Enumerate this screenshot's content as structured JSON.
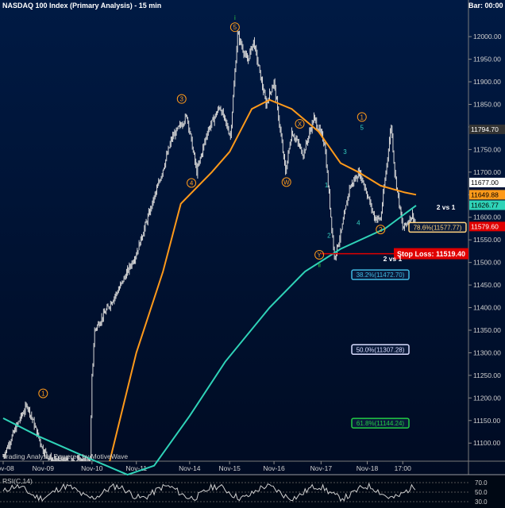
{
  "header": {
    "title": "NASDAQ 100 Index (Primary Analysis) - 15 min",
    "bar_label": "Bar: 00:00"
  },
  "footer": {
    "credit": "Trading Analysis Powered by MotiveWave"
  },
  "indicator": {
    "name": "RSI(C,14)",
    "ticks": [
      "70.0",
      "50.0",
      "30.0"
    ],
    "levels": [
      70,
      50,
      30
    ]
  },
  "colors": {
    "background": "#001a44",
    "price_bars": "#d8d8d8",
    "orange_ma": "#ff9a1a",
    "teal_ma": "#2fd3b8",
    "wave_labels": "#ff9a1a",
    "sub_wave_labels": "#35d0c0",
    "stop_loss": "#e00000",
    "fib_78_6": "#ffd27f",
    "fib_38_2": "#3fb8e0",
    "fib_50_0": "#d8dcff",
    "fib_61_8": "#22cc44"
  },
  "chart_data": {
    "type": "bar",
    "ylim": [
      11060,
      12060
    ],
    "y_ticks": [
      11100,
      11150,
      11200,
      11250,
      11300,
      11350,
      11400,
      11450,
      11500,
      11550,
      11600,
      11650,
      11700,
      11750,
      11800,
      11850,
      11900,
      11950,
      12000
    ],
    "y_tick_labels": [
      "11100.00",
      "11150.00",
      "11200.00",
      "11250.00",
      "11300.00",
      "11350.00",
      "11400.00",
      "11450.00",
      "11500.00",
      "11550.00",
      "11600.00",
      "11650.00",
      "11700.00",
      "11750.00",
      "11800.00",
      "11850.00",
      "11900.00",
      "11950.00",
      "12000.00"
    ],
    "x_tick_labels": [
      "Nov-08",
      "Nov-09",
      "Nov-10",
      "Nov-11",
      "Nov-14",
      "Nov-15",
      "Nov-16",
      "Nov-17",
      "Nov-18",
      "17:00"
    ],
    "x_tick_index": [
      0,
      45,
      100,
      150,
      210,
      255,
      305,
      358,
      410,
      450
    ],
    "bar_count": 465,
    "price_path": [
      [
        0,
        11070
      ],
      [
        18,
        11150
      ],
      [
        27,
        11185
      ],
      [
        45,
        11085
      ],
      [
        55,
        11060
      ],
      [
        98,
        11060
      ],
      [
        100,
        11245
      ],
      [
        103,
        11350
      ],
      [
        118,
        11400
      ],
      [
        130,
        11440
      ],
      [
        150,
        11520
      ],
      [
        163,
        11600
      ],
      [
        176,
        11680
      ],
      [
        190,
        11775
      ],
      [
        207,
        11825
      ],
      [
        218,
        11700
      ],
      [
        230,
        11790
      ],
      [
        244,
        11845
      ],
      [
        256,
        11780
      ],
      [
        264,
        12005
      ],
      [
        275,
        11945
      ],
      [
        282,
        11990
      ],
      [
        296,
        11850
      ],
      [
        305,
        11900
      ],
      [
        318,
        11700
      ],
      [
        325,
        11790
      ],
      [
        338,
        11740
      ],
      [
        350,
        11820
      ],
      [
        362,
        11765
      ],
      [
        373,
        11510
      ],
      [
        381,
        11570
      ],
      [
        390,
        11665
      ],
      [
        401,
        11700
      ],
      [
        407,
        11670
      ],
      [
        418,
        11600
      ],
      [
        425,
        11595
      ],
      [
        437,
        11805
      ],
      [
        441,
        11700
      ],
      [
        450,
        11575
      ],
      [
        461,
        11605
      ],
      [
        465,
        11577
      ]
    ],
    "last_close": 11577.0,
    "moving_averages": [
      {
        "color": "orange",
        "points": [
          [
            120,
            11060
          ],
          [
            150,
            11300
          ],
          [
            180,
            11480
          ],
          [
            200,
            11630
          ],
          [
            235,
            11700
          ],
          [
            255,
            11745
          ],
          [
            280,
            11840
          ],
          [
            300,
            11860
          ],
          [
            325,
            11840
          ],
          [
            355,
            11790
          ],
          [
            380,
            11720
          ],
          [
            400,
            11700
          ],
          [
            425,
            11670
          ],
          [
            452,
            11655
          ],
          [
            465,
            11650
          ]
        ]
      },
      {
        "color": "teal",
        "points": [
          [
            0,
            11155
          ],
          [
            40,
            11115
          ],
          [
            90,
            11072
          ],
          [
            140,
            11030
          ],
          [
            170,
            11050
          ],
          [
            210,
            11160
          ],
          [
            250,
            11280
          ],
          [
            300,
            11400
          ],
          [
            340,
            11480
          ],
          [
            380,
            11530
          ],
          [
            430,
            11575
          ],
          [
            465,
            11626
          ]
        ]
      }
    ],
    "wave_labels": [
      {
        "text": "1",
        "x": 45,
        "y": 11210,
        "circled": true,
        "color": "orange"
      },
      {
        "text": "3",
        "x": 201,
        "y": 11862,
        "circled": true,
        "color": "orange"
      },
      {
        "text": "4",
        "x": 212,
        "y": 11676,
        "circled": true,
        "color": "orange"
      },
      {
        "text": "5",
        "x": 261,
        "y": 12021,
        "circled": true,
        "color": "orange"
      },
      {
        "text": "i",
        "x": 261,
        "y": 12042,
        "circled": false,
        "color": "green"
      },
      {
        "text": "W",
        "x": 319,
        "y": 11678,
        "circled": true,
        "color": "orange"
      },
      {
        "text": "X",
        "x": 334,
        "y": 11807,
        "circled": true,
        "color": "orange"
      },
      {
        "text": "Y",
        "x": 356,
        "y": 11517,
        "circled": true,
        "color": "orange"
      },
      {
        "text": "ii",
        "x": 356,
        "y": 11495,
        "circled": false,
        "color": "green"
      },
      {
        "text": "1",
        "x": 404,
        "y": 11822,
        "circled": true,
        "color": "orange"
      },
      {
        "text": "1",
        "x": 364,
        "y": 11672,
        "circled": false,
        "color": "teal"
      },
      {
        "text": "2",
        "x": 367,
        "y": 11560,
        "circled": false,
        "color": "teal"
      },
      {
        "text": "3",
        "x": 385,
        "y": 11745,
        "circled": false,
        "color": "teal"
      },
      {
        "text": "4",
        "x": 400,
        "y": 11588,
        "circled": false,
        "color": "teal"
      },
      {
        "text": "5",
        "x": 404,
        "y": 11799,
        "circled": false,
        "color": "teal"
      },
      {
        "text": "2",
        "x": 425,
        "y": 11573,
        "circled": true,
        "color": "orange"
      }
    ],
    "annotations": [
      {
        "text": "2 vs 1",
        "x": 488,
        "y": 11617
      },
      {
        "text": "2 vs 1",
        "x": 428,
        "y": 11503
      }
    ],
    "price_boxes": [
      {
        "text": "11794.70",
        "value": 11794.7,
        "color": "#333"
      },
      {
        "text": "11677.00",
        "value": 11677.0,
        "color": "#ffffff"
      },
      {
        "text": "11649.88",
        "value": 11649.88,
        "color": "#ff9a1a"
      },
      {
        "text": "11626.77",
        "value": 11626.77,
        "color": "#2fd3b8"
      },
      {
        "text": "11579.60",
        "value": 11579.6,
        "color": "#e00000"
      }
    ],
    "stop_loss": {
      "text": "Stop Loss: 11519.40",
      "value": 11519.4
    },
    "fib_levels": [
      {
        "text": "78.6%(11577.77)",
        "value": 11577.77,
        "color": "#ffd27f"
      },
      {
        "text": "38.2%(11472.70)",
        "value": 11472.7,
        "color": "#3fb8e0"
      },
      {
        "text": "50.0%(11307.28)",
        "value": 11307.28,
        "color": "#d8dcff"
      },
      {
        "text": "61.8%(11144.24)",
        "value": 11144.24,
        "color": "#22cc44"
      }
    ]
  }
}
